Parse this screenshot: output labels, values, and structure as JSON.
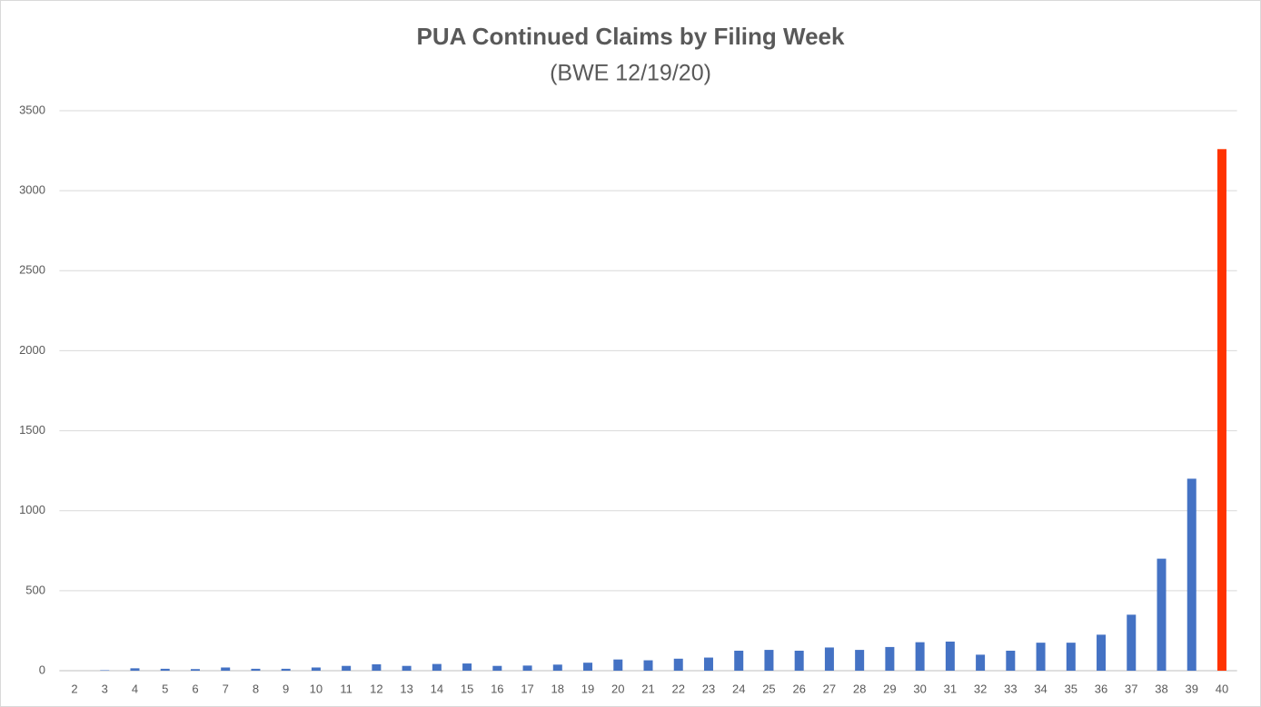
{
  "chart_data": {
    "type": "bar",
    "title": "PUA Continued Claims by Filing Week",
    "subtitle": "(BWE 12/19/20)",
    "categories": [
      "2",
      "3",
      "4",
      "5",
      "6",
      "7",
      "8",
      "9",
      "10",
      "11",
      "12",
      "13",
      "14",
      "15",
      "16",
      "17",
      "18",
      "19",
      "20",
      "21",
      "22",
      "23",
      "24",
      "25",
      "26",
      "27",
      "28",
      "29",
      "30",
      "31",
      "32",
      "33",
      "34",
      "35",
      "36",
      "37",
      "38",
      "39",
      "40"
    ],
    "values": [
      0,
      3,
      15,
      12,
      10,
      20,
      12,
      12,
      20,
      30,
      40,
      30,
      42,
      45,
      30,
      32,
      38,
      50,
      70,
      65,
      75,
      82,
      125,
      130,
      125,
      145,
      130,
      148,
      178,
      182,
      100,
      125,
      175,
      175,
      225,
      350,
      700,
      1200,
      3260
    ],
    "colors": [
      "#4472c4",
      "#4472c4",
      "#4472c4",
      "#4472c4",
      "#4472c4",
      "#4472c4",
      "#4472c4",
      "#4472c4",
      "#4472c4",
      "#4472c4",
      "#4472c4",
      "#4472c4",
      "#4472c4",
      "#4472c4",
      "#4472c4",
      "#4472c4",
      "#4472c4",
      "#4472c4",
      "#4472c4",
      "#4472c4",
      "#4472c4",
      "#4472c4",
      "#4472c4",
      "#4472c4",
      "#4472c4",
      "#4472c4",
      "#4472c4",
      "#4472c4",
      "#4472c4",
      "#4472c4",
      "#4472c4",
      "#4472c4",
      "#4472c4",
      "#4472c4",
      "#4472c4",
      "#4472c4",
      "#4472c4",
      "#4472c4",
      "#ff3300"
    ],
    "ylim": [
      0,
      3500
    ],
    "yticks": [
      0,
      500,
      1000,
      1500,
      2000,
      2500,
      3000,
      3500
    ],
    "grid": true
  }
}
